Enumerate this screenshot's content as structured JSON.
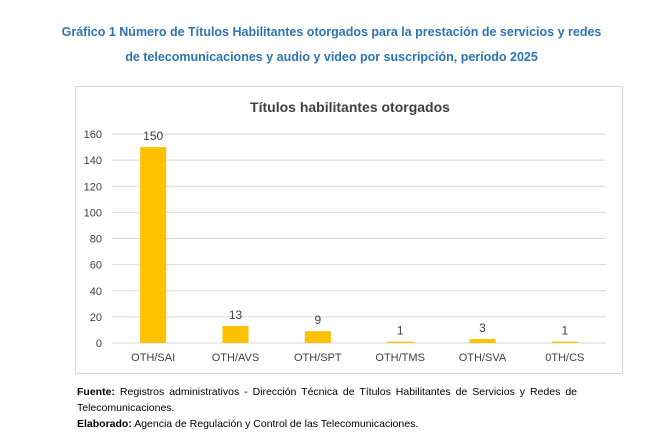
{
  "caption": {
    "line1": "Gráfico 1 Número de Títulos Habilitantes otorgados para la prestación de servicios y redes",
    "line2": "de telecomunicaciones y audio y video por suscripción, período 2025"
  },
  "chart_data": {
    "type": "bar",
    "title": "Títulos habilitantes otorgados",
    "categories": [
      "OTH/SAI",
      "OTH/AVS",
      "OTH/SPT",
      "OTH/TMS",
      "OTH/SVA",
      "0TH/CS"
    ],
    "values": [
      150,
      13,
      9,
      1,
      3,
      1
    ],
    "ylim": [
      0,
      160
    ],
    "yticks": [
      0,
      20,
      40,
      60,
      80,
      100,
      120,
      140,
      160
    ],
    "grid": true,
    "bar_color": "#ffc000",
    "grid_color": "#d9d9d9"
  },
  "footer": {
    "source_label": "Fuente:",
    "source_text": "Registros administrativos - Dirección Técnica de Títulos Habilitantes de Servicios y Redes de Telecomunicaciones.",
    "elab_label": "Elaborado:",
    "elab_text": "Agencia de Regulación y Control de las Telecomunicaciones."
  }
}
